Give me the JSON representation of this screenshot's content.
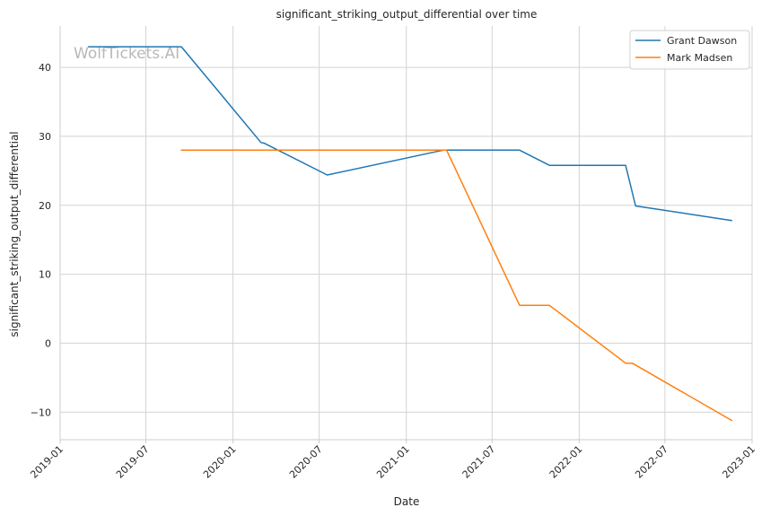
{
  "chart_data": {
    "type": "line",
    "title": "significant_striking_output_differential over time",
    "xlabel": "Date",
    "ylabel": "significant_striking_output_differential",
    "watermark": "WolfTickets.AI",
    "x_axis": {
      "kind": "date",
      "range": [
        "2019-01-01",
        "2023-01-01"
      ],
      "ticks": [
        "2019-01",
        "2019-07",
        "2020-01",
        "2020-07",
        "2021-01",
        "2021-07",
        "2022-01",
        "2022-07",
        "2023-01"
      ]
    },
    "y_axis": {
      "range": [
        -14,
        46
      ],
      "ticks": [
        -10,
        0,
        10,
        20,
        30,
        40
      ],
      "tick_labels": [
        "−10",
        "0",
        "10",
        "20",
        "30",
        "40"
      ]
    },
    "grid": true,
    "legend_position": "top-right",
    "series": [
      {
        "name": "Grant Dawson",
        "color": "#1f77b4",
        "points": [
          {
            "x": "2019-03-02",
            "y": 43.0
          },
          {
            "x": "2019-09-14",
            "y": 43.0
          },
          {
            "x": "2020-02-29",
            "y": 29.1
          },
          {
            "x": "2020-03-07",
            "y": 29.0
          },
          {
            "x": "2020-07-18",
            "y": 24.4
          },
          {
            "x": "2021-03-20",
            "y": 28.0
          },
          {
            "x": "2021-08-28",
            "y": 28.0
          },
          {
            "x": "2021-10-30",
            "y": 25.8
          },
          {
            "x": "2022-04-09",
            "y": 25.8
          },
          {
            "x": "2022-04-30",
            "y": 19.9
          },
          {
            "x": "2022-11-19",
            "y": 17.8
          }
        ]
      },
      {
        "name": "Mark Madsen",
        "color": "#ff7f0e",
        "points": [
          {
            "x": "2019-09-14",
            "y": 28.0
          },
          {
            "x": "2021-03-27",
            "y": 28.0
          },
          {
            "x": "2021-08-28",
            "y": 5.5
          },
          {
            "x": "2021-10-30",
            "y": 5.5
          },
          {
            "x": "2022-04-09",
            "y": -2.9
          },
          {
            "x": "2022-04-23",
            "y": -2.9
          },
          {
            "x": "2022-11-19",
            "y": -11.2
          }
        ]
      }
    ]
  }
}
